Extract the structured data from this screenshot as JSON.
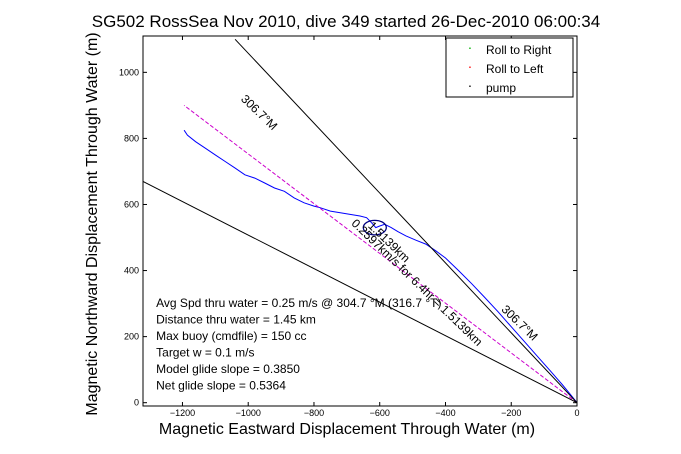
{
  "chart_data": {
    "type": "line",
    "title": "SG502 RossSea Nov 2010, dive 349 started 26-Dec-2010 06:00:34",
    "xlabel": "Magnetic Eastward Displacement Through Water (m)",
    "ylabel": "Magnetic Northward Displacement Through Water (m)",
    "xlim": [
      -1320,
      0
    ],
    "ylim": [
      -10,
      1110
    ],
    "xticks": [
      -1200,
      -1000,
      -800,
      -600,
      -400,
      -200,
      0
    ],
    "xtick_labels": [
      "−1200",
      "−1000",
      "−800",
      "−600",
      "−400",
      "−200",
      "0"
    ],
    "yticks": [
      0,
      200,
      400,
      600,
      800,
      1000
    ],
    "ytick_labels": [
      "0",
      "200",
      "400",
      "600",
      "800",
      "1000"
    ],
    "grid": false,
    "legend": {
      "placement": "top-right",
      "entries": [
        {
          "label": "Roll to Right",
          "marker": "·",
          "color": "#00b000"
        },
        {
          "label": "Roll to Left",
          "marker": "·",
          "color": "#ff0000"
        },
        {
          "label": "pump",
          "marker": "·",
          "color": "#000000"
        }
      ]
    },
    "series": [
      {
        "color": "#0000ff",
        "x": [
          0,
          -20,
          -45,
          -80,
          -120,
          -160,
          -200,
          -240,
          -280,
          -320,
          -360,
          -400,
          -430,
          -460,
          -490,
          -520,
          -545,
          -565,
          -585,
          -600,
          -612,
          -625,
          -640,
          -660,
          -690,
          -720,
          -750,
          -780,
          -800,
          -830,
          -860,
          -890,
          -920,
          -950,
          -980,
          -1010,
          -1040,
          -1070,
          -1100,
          -1130,
          -1160,
          -1185,
          -1195
        ],
        "y": [
          0,
          25,
          55,
          95,
          140,
          185,
          230,
          275,
          318,
          360,
          400,
          438,
          460,
          480,
          492,
          505,
          518,
          530,
          540,
          535,
          530,
          545,
          560,
          565,
          570,
          575,
          580,
          590,
          595,
          605,
          620,
          640,
          650,
          665,
          680,
          690,
          710,
          730,
          750,
          770,
          790,
          810,
          825
        ]
      },
      {
        "color": "#cc00cc",
        "style": "dashed",
        "x": [
          0,
          -1195
        ],
        "y": [
          0,
          900
        ]
      },
      {
        "color": "#000000",
        "x": [
          0,
          -1320
        ],
        "y": [
          0,
          670
        ]
      },
      {
        "color": "#000000",
        "x": [
          0,
          -1040
        ],
        "y": [
          0,
          1100
        ]
      },
      {
        "color": "#000080",
        "type": "ellipse",
        "cx": -615,
        "cy": 530,
        "rx": 35,
        "ry": 22
      }
    ],
    "annotations": [
      {
        "text": "306.7°M",
        "x": -975,
        "y": 870
      },
      {
        "text": "306.7°M",
        "x": -183,
        "y": 233
      },
      {
        "text": "1.5139km",
        "x": -580,
        "y": 478
      },
      {
        "text": "0.2597km/s for 6.4hr = 1.5139km",
        "x": -495,
        "y": 355
      },
      {
        "text": "Avg Spd thru water =  0.25 m/s @ 304.7 °M (316.7 °T)",
        "x": -1280,
        "y": 290
      },
      {
        "text": "Distance thru water =  1.45 km",
        "x": -1280,
        "y": 240
      },
      {
        "text": "Max buoy (cmdfile) = 150 cc",
        "x": -1280,
        "y": 190
      },
      {
        "text": "Target w = 0.1 m/s",
        "x": -1280,
        "y": 140
      },
      {
        "text": "Model glide slope = 0.3850",
        "x": -1280,
        "y": 90
      },
      {
        "text": "Net glide slope = 0.5364",
        "x": -1280,
        "y": 40
      }
    ]
  }
}
